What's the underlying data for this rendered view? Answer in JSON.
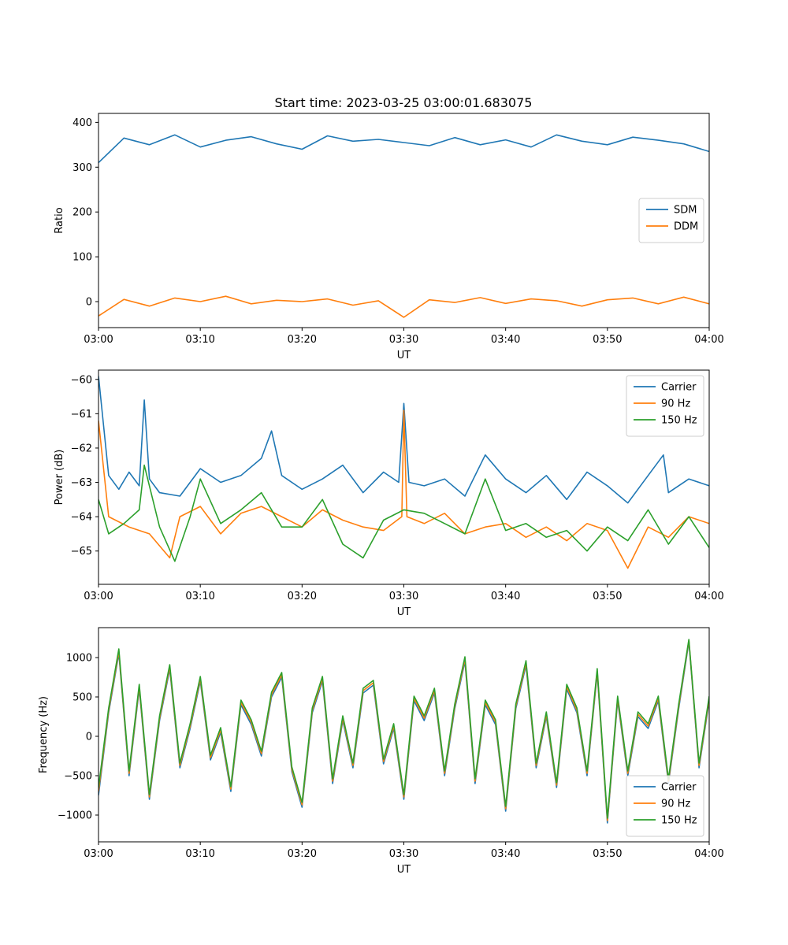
{
  "figure_title": "Start time: 2023-03-25 03:00:01.683075",
  "colors": {
    "blue": "#1f77b4",
    "orange": "#ff7f0e",
    "green": "#2ca02c"
  },
  "chart_data": [
    {
      "type": "line",
      "xlabel": "UT",
      "ylabel": "Ratio",
      "xlim": [
        "03:00",
        "04:00"
      ],
      "ylim": [
        -58,
        420
      ],
      "x_ticks": [
        "03:00",
        "03:10",
        "03:20",
        "03:30",
        "03:40",
        "03:50",
        "04:00"
      ],
      "y_ticks": [
        0,
        100,
        200,
        300,
        400
      ],
      "y_tick_labels": [
        "0",
        "100",
        "200",
        "300",
        "400"
      ],
      "legend": {
        "position": "center-right",
        "entries": [
          "SDM",
          "DDM"
        ]
      },
      "series": [
        {
          "name": "SDM",
          "color": "#1f77b4",
          "x_minutes": [
            0,
            2.5,
            5,
            7.5,
            10,
            12.5,
            15,
            17.5,
            20,
            22.5,
            25,
            27.5,
            30,
            32.5,
            35,
            37.5,
            40,
            42.5,
            45,
            47.5,
            50,
            52.5,
            55,
            57.5,
            60
          ],
          "values": [
            310,
            365,
            350,
            372,
            345,
            360,
            368,
            352,
            340,
            370,
            358,
            362,
            355,
            348,
            366,
            350,
            361,
            345,
            372,
            358,
            350,
            367,
            360,
            352,
            335
          ]
        },
        {
          "name": "DDM",
          "color": "#ff7f0e",
          "x_minutes": [
            0,
            2.5,
            5,
            7.5,
            10,
            12.5,
            15,
            17.5,
            20,
            22.5,
            25,
            27.5,
            30,
            32.5,
            35,
            37.5,
            40,
            42.5,
            45,
            47.5,
            50,
            52.5,
            55,
            57.5,
            60
          ],
          "values": [
            -32,
            5,
            -10,
            8,
            0,
            12,
            -5,
            3,
            0,
            6,
            -8,
            2,
            -35,
            4,
            -2,
            9,
            -4,
            6,
            2,
            -10,
            4,
            8,
            -5,
            10,
            -5
          ]
        }
      ]
    },
    {
      "type": "line",
      "xlabel": "UT",
      "ylabel": "Power (dB)",
      "xlim": [
        "03:00",
        "04:00"
      ],
      "ylim": [
        -65.97,
        -59.73
      ],
      "x_ticks": [
        "03:00",
        "03:10",
        "03:20",
        "03:30",
        "03:40",
        "03:50",
        "04:00"
      ],
      "y_ticks": [
        -65,
        -64,
        -63,
        -62,
        -61,
        -60
      ],
      "y_tick_labels": [
        "−65",
        "−64",
        "−63",
        "−62",
        "−61",
        "−60"
      ],
      "legend": {
        "position": "top-right",
        "entries": [
          "Carrier",
          "90 Hz",
          "150 Hz"
        ]
      },
      "series": [
        {
          "name": "Carrier",
          "color": "#1f77b4",
          "x_minutes": [
            0,
            1,
            2,
            3,
            4,
            4.5,
            5,
            6,
            8,
            10,
            12,
            14,
            16,
            17,
            18,
            20,
            22,
            24,
            26,
            28,
            29.5,
            30,
            30.5,
            32,
            34,
            36,
            38,
            40,
            42,
            44,
            46,
            48,
            50,
            52,
            54,
            55.5,
            56,
            58,
            60
          ],
          "values": [
            -59.9,
            -62.8,
            -63.2,
            -62.7,
            -63.1,
            -60.6,
            -62.9,
            -63.3,
            -63.4,
            -62.6,
            -63.0,
            -62.8,
            -62.3,
            -61.5,
            -62.8,
            -63.2,
            -62.9,
            -62.5,
            -63.3,
            -62.7,
            -63.0,
            -60.7,
            -63.0,
            -63.1,
            -62.9,
            -63.4,
            -62.2,
            -62.9,
            -63.3,
            -62.8,
            -63.5,
            -62.7,
            -63.1,
            -63.6,
            -62.8,
            -62.2,
            -63.3,
            -62.9,
            -63.1
          ]
        },
        {
          "name": "90 Hz",
          "color": "#ff7f0e",
          "x_minutes": [
            0,
            1,
            3,
            5,
            7,
            8,
            10,
            12,
            14,
            16,
            18,
            20,
            22,
            24,
            26,
            28,
            29.8,
            30,
            30.3,
            32,
            34,
            36,
            38,
            40,
            42,
            44,
            46,
            48,
            50,
            52,
            54,
            56,
            58,
            60
          ],
          "values": [
            -61.2,
            -64.0,
            -64.3,
            -64.5,
            -65.2,
            -64.0,
            -63.7,
            -64.5,
            -63.9,
            -63.7,
            -64.0,
            -64.3,
            -63.8,
            -64.1,
            -64.3,
            -64.4,
            -64.0,
            -60.9,
            -64.0,
            -64.2,
            -63.9,
            -64.5,
            -64.3,
            -64.2,
            -64.6,
            -64.3,
            -64.7,
            -64.2,
            -64.4,
            -65.5,
            -64.3,
            -64.6,
            -64.0,
            -64.2
          ]
        },
        {
          "name": "150 Hz",
          "color": "#2ca02c",
          "x_minutes": [
            0,
            1,
            2.5,
            4,
            4.5,
            6,
            7.5,
            9,
            10,
            12,
            14,
            16,
            18,
            20,
            22,
            24,
            26,
            28,
            30,
            32,
            34,
            36,
            38,
            40,
            42,
            44,
            46,
            48,
            50,
            52,
            54,
            56,
            58,
            60
          ],
          "values": [
            -63.5,
            -64.5,
            -64.2,
            -63.8,
            -62.5,
            -64.3,
            -65.3,
            -64.0,
            -62.9,
            -64.2,
            -63.8,
            -63.3,
            -64.3,
            -64.3,
            -63.5,
            -64.8,
            -65.2,
            -64.1,
            -63.8,
            -63.9,
            -64.2,
            -64.5,
            -62.9,
            -64.4,
            -64.2,
            -64.6,
            -64.4,
            -65.0,
            -64.3,
            -64.7,
            -63.8,
            -64.8,
            -64.0,
            -64.9
          ]
        }
      ]
    },
    {
      "type": "line",
      "xlabel": "UT",
      "ylabel": "Frequency (Hz)",
      "xlim": [
        "03:00",
        "04:00"
      ],
      "ylim": [
        -1340,
        1380
      ],
      "x_ticks": [
        "03:00",
        "03:10",
        "03:20",
        "03:30",
        "03:40",
        "03:50",
        "04:00"
      ],
      "y_ticks": [
        -1000,
        -500,
        0,
        500,
        1000
      ],
      "y_tick_labels": [
        "−1000",
        "−500",
        "0",
        "500",
        "1000"
      ],
      "legend": {
        "position": "lower-right",
        "entries": [
          "Carrier",
          "90 Hz",
          "150 Hz"
        ]
      },
      "series": [
        {
          "name": "Carrier",
          "color": "#1f77b4",
          "x_minutes": [
            0,
            1,
            2,
            3,
            4,
            5,
            6,
            7,
            8,
            9,
            10,
            11,
            12,
            13,
            14,
            15,
            16,
            17,
            18,
            19,
            20,
            21,
            22,
            23,
            24,
            25,
            26,
            27,
            28,
            29,
            30,
            31,
            32,
            33,
            34,
            35,
            36,
            37,
            38,
            39,
            40,
            41,
            42,
            43,
            44,
            45,
            46,
            47,
            48,
            49,
            50,
            51,
            52,
            53,
            54,
            55,
            56,
            57,
            58,
            59,
            60
          ],
          "values": [
            -750,
            300,
            1050,
            -500,
            600,
            -800,
            200,
            850,
            -400,
            100,
            700,
            -300,
            50,
            -700,
            400,
            150,
            -250,
            500,
            750,
            -450,
            -900,
            300,
            700,
            -600,
            200,
            -400,
            550,
            650,
            -350,
            100,
            -800,
            450,
            200,
            550,
            -500,
            350,
            950,
            -600,
            400,
            150,
            -950,
            350,
            900,
            -400,
            250,
            -650,
            600,
            300,
            -500,
            800,
            -1100,
            450,
            -500,
            250,
            100,
            450,
            -600,
            350,
            1200,
            -400,
            450
          ]
        },
        {
          "name": "90 Hz",
          "color": "#ff7f0e",
          "x_minutes": [
            0,
            1,
            2,
            3,
            4,
            5,
            6,
            7,
            8,
            9,
            10,
            11,
            12,
            13,
            14,
            15,
            16,
            17,
            18,
            19,
            20,
            21,
            22,
            23,
            24,
            25,
            26,
            27,
            28,
            29,
            30,
            31,
            32,
            33,
            34,
            35,
            36,
            37,
            38,
            39,
            40,
            41,
            42,
            43,
            44,
            45,
            46,
            47,
            48,
            49,
            50,
            51,
            52,
            53,
            54,
            55,
            56,
            57,
            58,
            59,
            60
          ],
          "values": [
            -700,
            330,
            1080,
            -470,
            630,
            -770,
            230,
            880,
            -370,
            130,
            730,
            -270,
            80,
            -670,
            430,
            180,
            -220,
            530,
            780,
            -420,
            -870,
            330,
            730,
            -570,
            230,
            -370,
            580,
            680,
            -320,
            130,
            -770,
            480,
            230,
            580,
            -470,
            380,
            980,
            -570,
            430,
            180,
            -920,
            380,
            930,
            -370,
            280,
            -620,
            630,
            330,
            -470,
            830,
            -1070,
            480,
            -470,
            280,
            130,
            480,
            -570,
            380,
            1220,
            -370,
            480
          ]
        },
        {
          "name": "150 Hz",
          "color": "#2ca02c",
          "x_minutes": [
            0,
            1,
            2,
            3,
            4,
            5,
            6,
            7,
            8,
            9,
            10,
            11,
            12,
            13,
            14,
            15,
            16,
            17,
            18,
            19,
            20,
            21,
            22,
            23,
            24,
            25,
            26,
            27,
            28,
            29,
            30,
            31,
            32,
            33,
            34,
            35,
            36,
            37,
            38,
            39,
            40,
            41,
            42,
            43,
            44,
            45,
            46,
            47,
            48,
            49,
            50,
            51,
            52,
            53,
            54,
            55,
            56,
            57,
            58,
            59,
            60
          ],
          "values": [
            -650,
            360,
            1110,
            -440,
            660,
            -740,
            260,
            910,
            -340,
            160,
            760,
            -240,
            110,
            -640,
            460,
            210,
            -190,
            560,
            810,
            -390,
            -840,
            360,
            760,
            -540,
            260,
            -340,
            610,
            710,
            -290,
            160,
            -740,
            510,
            260,
            610,
            -440,
            410,
            1010,
            -540,
            460,
            210,
            -890,
            410,
            960,
            -340,
            310,
            -590,
            660,
            360,
            -440,
            860,
            -1040,
            510,
            -440,
            310,
            160,
            510,
            -540,
            410,
            1230,
            -340,
            510
          ]
        }
      ]
    }
  ]
}
